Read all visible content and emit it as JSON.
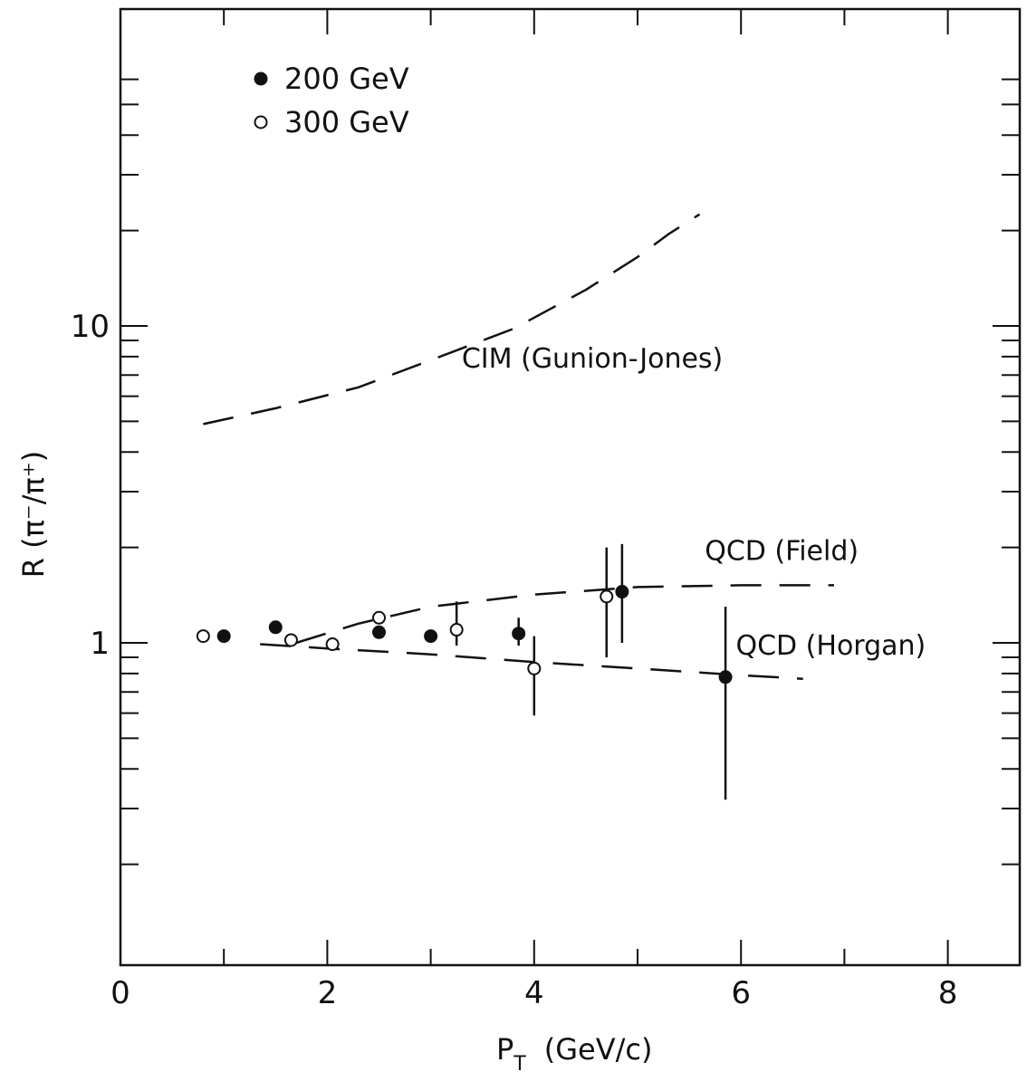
{
  "chart_data": {
    "type": "scatter",
    "title": "",
    "xlabel": "P_T (GeV/c)",
    "xlabel_main": "P",
    "xlabel_sub": "T",
    "xlabel_units": "(GeV/c)",
    "ylabel": "R (π⁻/π⁺)",
    "xlim": [
      0,
      8.7
    ],
    "ylim": [
      0.2,
      60
    ],
    "y_scale": "log",
    "grid": false,
    "legend_position": "top-left",
    "x_ticks": [
      0,
      2,
      4,
      6,
      8
    ],
    "x_tick_labels": [
      "0",
      "2",
      "4",
      "6",
      "8"
    ],
    "y_tick_labels": [
      {
        "value": 10,
        "label": "10"
      },
      {
        "value": 1,
        "label": "1"
      }
    ],
    "series": [
      {
        "name": "200 GeV",
        "marker": "filled-circle",
        "points": [
          {
            "x": 1.0,
            "y": 1.05
          },
          {
            "x": 1.5,
            "y": 1.12
          },
          {
            "x": 2.5,
            "y": 1.08
          },
          {
            "x": 3.0,
            "y": 1.05
          },
          {
            "x": 3.85,
            "y": 1.07,
            "err_lo": 0.98,
            "err_hi": 1.2
          },
          {
            "x": 4.85,
            "y": 1.45,
            "err_lo": 1.0,
            "err_hi": 2.05
          },
          {
            "x": 5.85,
            "y": 0.78,
            "err_lo": 0.32,
            "err_hi": 1.3
          }
        ]
      },
      {
        "name": "300 GeV",
        "marker": "open-circle",
        "points": [
          {
            "x": 0.8,
            "y": 1.05
          },
          {
            "x": 1.65,
            "y": 1.02
          },
          {
            "x": 2.05,
            "y": 0.99
          },
          {
            "x": 2.5,
            "y": 1.2
          },
          {
            "x": 3.25,
            "y": 1.1,
            "err_lo": 0.98,
            "err_hi": 1.35
          },
          {
            "x": 4.0,
            "y": 0.83,
            "err_lo": 0.59,
            "err_hi": 1.05
          },
          {
            "x": 4.7,
            "y": 1.4,
            "err_lo": 0.9,
            "err_hi": 2.0
          }
        ]
      }
    ],
    "curves": [
      {
        "name": "CIM (Gunion-Jones)",
        "style": "dashed",
        "points": [
          [
            0.8,
            4.9
          ],
          [
            1.5,
            5.5
          ],
          [
            2.3,
            6.4
          ],
          [
            3.0,
            7.8
          ],
          [
            3.8,
            9.8
          ],
          [
            4.5,
            13.0
          ],
          [
            5.0,
            16.5
          ],
          [
            5.3,
            19.5
          ],
          [
            5.6,
            22.5
          ]
        ]
      },
      {
        "name": "QCD (Field)",
        "style": "dashed",
        "points": [
          [
            1.7,
            1.0
          ],
          [
            2.3,
            1.15
          ],
          [
            3.0,
            1.3
          ],
          [
            4.0,
            1.42
          ],
          [
            5.0,
            1.5
          ],
          [
            6.0,
            1.52
          ],
          [
            6.9,
            1.52
          ]
        ]
      },
      {
        "name": "QCD (Horgan)",
        "style": "dashed",
        "points": [
          [
            1.35,
            0.99
          ],
          [
            2.0,
            0.96
          ],
          [
            3.0,
            0.92
          ],
          [
            4.0,
            0.87
          ],
          [
            5.0,
            0.83
          ],
          [
            6.0,
            0.79
          ],
          [
            6.6,
            0.77
          ]
        ]
      }
    ],
    "annotations": [
      {
        "text": "CIM (Gunion-Jones)",
        "x": 3.3,
        "y": 7.9
      },
      {
        "text": "QCD (Field)",
        "x": 5.65,
        "y": 1.95
      },
      {
        "text": "QCD (Horgan)",
        "x": 5.95,
        "y": 0.98
      }
    ],
    "colors": {
      "ink": "#111111",
      "background": "#ffffff"
    }
  }
}
